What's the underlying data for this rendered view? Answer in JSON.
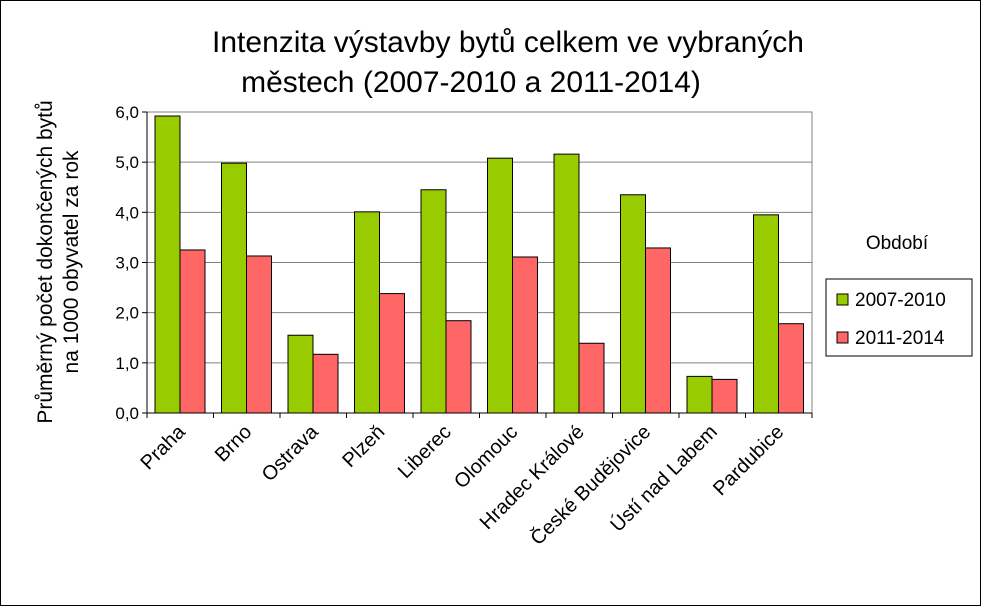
{
  "chart_data": {
    "type": "bar",
    "title_lines": [
      "Intenzita výstavby bytů celkem ve vybraných",
      "městech (2007-2010 a 2011-2014)"
    ],
    "ylabel_lines": [
      "Průměrný počet dokončených bytů",
      "na 1000 obyvatel za rok"
    ],
    "xlabel": "",
    "ylim": [
      0,
      6
    ],
    "ytick_labels": [
      "0,0",
      "1,0",
      "2,0",
      "3,0",
      "4,0",
      "5,0",
      "6,0"
    ],
    "yticks": [
      0,
      1,
      2,
      3,
      4,
      5,
      6
    ],
    "grid": true,
    "legend_title": "Období",
    "legend_position": "right",
    "categories": [
      "Praha",
      "Brno",
      "Ostrava",
      "Plzeň",
      "Liberec",
      "Olomouc",
      "Hradec Králové",
      "České Budějovice",
      "Ústí nad Labem",
      "Pardubice"
    ],
    "series": [
      {
        "name": "2007-2010",
        "color": "#99cc00",
        "values": [
          5.92,
          4.98,
          1.55,
          4.01,
          4.45,
          5.08,
          5.16,
          4.35,
          0.73,
          3.95
        ]
      },
      {
        "name": "2011-2014",
        "color": "#ff6666",
        "values": [
          3.25,
          3.13,
          1.17,
          2.38,
          1.84,
          3.11,
          1.39,
          3.29,
          0.67,
          1.78
        ]
      }
    ]
  }
}
